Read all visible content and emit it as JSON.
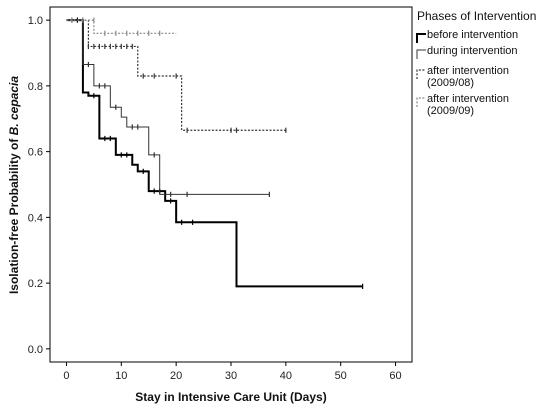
{
  "chart_data": {
    "type": "line",
    "xlabel": "Stay in Intensive Care Unit (Days)",
    "ylabel_prefix": "Isolation-free Probability of ",
    "ylabel_italic": "B. cepacia",
    "xlim": [
      -3,
      63
    ],
    "ylim": [
      -0.04,
      1.04
    ],
    "x_ticks": [
      0,
      10,
      20,
      30,
      40,
      50,
      60
    ],
    "y_ticks": [
      0.0,
      0.2,
      0.4,
      0.6,
      0.8,
      1.0
    ],
    "y_tick_labels": [
      "0.0",
      "0.2",
      "0.4",
      "0.6",
      "0.8",
      "1.0"
    ],
    "legend_title": "Phases of Intervention",
    "series": [
      {
        "name": "before intervention",
        "legend_lines": [
          "before intervention"
        ],
        "color": "#000000",
        "style": "solid",
        "width": 2,
        "steps": [
          [
            0,
            1.0
          ],
          [
            3,
            0.78
          ],
          [
            4,
            0.77
          ],
          [
            6,
            0.64
          ],
          [
            9,
            0.59
          ],
          [
            12,
            0.56
          ],
          [
            13,
            0.54
          ],
          [
            15,
            0.48
          ],
          [
            18,
            0.45
          ],
          [
            20,
            0.385
          ],
          [
            31,
            0.19
          ],
          [
            54,
            0.19
          ]
        ],
        "censored": [
          [
            1,
            1.0
          ],
          [
            2,
            1.0
          ],
          [
            3,
            1.0
          ],
          [
            5,
            0.77
          ],
          [
            7,
            0.64
          ],
          [
            8,
            0.64
          ],
          [
            10,
            0.59
          ],
          [
            11,
            0.59
          ],
          [
            14,
            0.54
          ],
          [
            16,
            0.48
          ],
          [
            17,
            0.48
          ],
          [
            19,
            0.45
          ],
          [
            21,
            0.385
          ],
          [
            23,
            0.385
          ],
          [
            54,
            0.19
          ]
        ]
      },
      {
        "name": "during intervention",
        "legend_lines": [
          "during  intervention"
        ],
        "color": "#333333",
        "style": "solid",
        "width": 1,
        "steps": [
          [
            0,
            1.0
          ],
          [
            3,
            0.865
          ],
          [
            5,
            0.8
          ],
          [
            8,
            0.735
          ],
          [
            10,
            0.705
          ],
          [
            11,
            0.675
          ],
          [
            15,
            0.59
          ],
          [
            17,
            0.47
          ],
          [
            37,
            0.47
          ]
        ],
        "censored": [
          [
            4,
            0.865
          ],
          [
            6,
            0.8
          ],
          [
            7,
            0.8
          ],
          [
            9,
            0.735
          ],
          [
            12,
            0.675
          ],
          [
            13,
            0.675
          ],
          [
            16,
            0.59
          ],
          [
            19,
            0.47
          ],
          [
            22,
            0.47
          ],
          [
            37,
            0.47
          ]
        ]
      },
      {
        "name": "after intervention (2009/08)",
        "legend_lines": [
          "after intervention",
          "(2009/08)"
        ],
        "color": "#333333",
        "style": "dotted",
        "width": 1.2,
        "steps": [
          [
            0,
            1.0
          ],
          [
            4,
            0.92
          ],
          [
            13,
            0.83
          ],
          [
            21,
            0.665
          ],
          [
            40,
            0.665
          ]
        ],
        "censored": [
          [
            4,
            0.92
          ],
          [
            5,
            0.92
          ],
          [
            6,
            0.92
          ],
          [
            7,
            0.92
          ],
          [
            8,
            0.92
          ],
          [
            9,
            0.92
          ],
          [
            10,
            0.92
          ],
          [
            11,
            0.92
          ],
          [
            12,
            0.92
          ],
          [
            14,
            0.83
          ],
          [
            16,
            0.83
          ],
          [
            20,
            0.83
          ],
          [
            22,
            0.665
          ],
          [
            30,
            0.665
          ],
          [
            31,
            0.665
          ],
          [
            40,
            0.665
          ]
        ]
      },
      {
        "name": "after intervention (2009/09)",
        "legend_lines": [
          "after intervention",
          "(2009/09)"
        ],
        "color": "#888888",
        "style": "dotted",
        "width": 1.2,
        "steps": [
          [
            0,
            1.0
          ],
          [
            5,
            0.96
          ],
          [
            20,
            0.96
          ]
        ],
        "censored": [
          [
            1,
            1.0
          ],
          [
            3,
            1.0
          ],
          [
            5,
            1.0
          ],
          [
            7,
            0.96
          ],
          [
            9,
            0.96
          ],
          [
            11,
            0.96
          ],
          [
            13,
            0.96
          ],
          [
            15,
            0.96
          ],
          [
            17,
            0.96
          ]
        ]
      }
    ]
  }
}
